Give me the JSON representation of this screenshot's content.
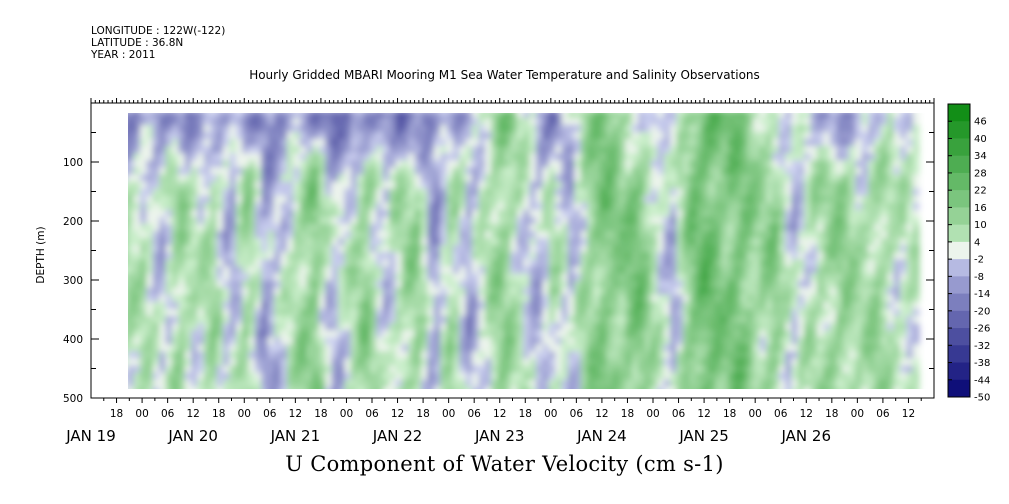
{
  "header": {
    "longitude": "LONGITUDE : 122W(-122)",
    "latitude": "LATITUDE : 36.8N",
    "year": "YEAR : 2011"
  },
  "chart_data": {
    "type": "heatmap",
    "title": "Hourly Gridded MBARI Mooring M1 Sea Water Temperature and Salinity Observations",
    "xlabel": "U Component of Water Velocity (cm s-1)",
    "ylabel": "DEPTH (m)",
    "ylim": [
      500,
      0
    ],
    "xlim_hours": [
      -12,
      186
    ],
    "data_range_hours": [
      -2,
      179
    ],
    "data_depth_range": [
      25,
      490
    ],
    "y_ticks": [
      100,
      200,
      300,
      400,
      500
    ],
    "x_hour_ticks": [
      {
        "h": -6,
        "label": "18"
      },
      {
        "h": 0,
        "label": "00"
      },
      {
        "h": 6,
        "label": "06"
      },
      {
        "h": 12,
        "label": "12"
      },
      {
        "h": 18,
        "label": "18"
      },
      {
        "h": 24,
        "label": "00"
      },
      {
        "h": 30,
        "label": "06"
      },
      {
        "h": 36,
        "label": "12"
      },
      {
        "h": 42,
        "label": "18"
      },
      {
        "h": 48,
        "label": "00"
      },
      {
        "h": 54,
        "label": "06"
      },
      {
        "h": 60,
        "label": "12"
      },
      {
        "h": 66,
        "label": "18"
      },
      {
        "h": 72,
        "label": "00"
      },
      {
        "h": 78,
        "label": "06"
      },
      {
        "h": 84,
        "label": "12"
      },
      {
        "h": 90,
        "label": "18"
      },
      {
        "h": 96,
        "label": "00"
      },
      {
        "h": 102,
        "label": "06"
      },
      {
        "h": 108,
        "label": "12"
      },
      {
        "h": 114,
        "label": "18"
      },
      {
        "h": 120,
        "label": "00"
      },
      {
        "h": 126,
        "label": "06"
      },
      {
        "h": 132,
        "label": "12"
      },
      {
        "h": 138,
        "label": "18"
      },
      {
        "h": 144,
        "label": "00"
      },
      {
        "h": 150,
        "label": "06"
      },
      {
        "h": 156,
        "label": "12"
      },
      {
        "h": 162,
        "label": "18"
      },
      {
        "h": 168,
        "label": "00"
      },
      {
        "h": 174,
        "label": "06"
      },
      {
        "h": 180,
        "label": "12"
      }
    ],
    "x_day_labels": [
      {
        "h": -12,
        "label": "JAN 19"
      },
      {
        "h": 12,
        "label": "JAN 20"
      },
      {
        "h": 36,
        "label": "JAN 21"
      },
      {
        "h": 60,
        "label": "JAN 22"
      },
      {
        "h": 84,
        "label": "JAN 23"
      },
      {
        "h": 108,
        "label": "JAN 24"
      },
      {
        "h": 132,
        "label": "JAN 25"
      },
      {
        "h": 156,
        "label": "JAN 26"
      }
    ],
    "colorbar": {
      "min": -50,
      "max": 52,
      "labels": [
        "46",
        "40",
        "34",
        "28",
        "22",
        "16",
        "10",
        "4",
        "-2",
        "-8",
        "-14",
        "-20",
        "-26",
        "-32",
        "-38",
        "-44",
        "-50"
      ]
    },
    "column_profile": [
      {
        "h": 0,
        "v": 6
      },
      {
        "h": 4,
        "v": -4
      },
      {
        "h": 8,
        "v": 12
      },
      {
        "h": 12,
        "v": 2
      },
      {
        "h": 16,
        "v": 10
      },
      {
        "h": 20,
        "v": -8
      },
      {
        "h": 24,
        "v": 14
      },
      {
        "h": 28,
        "v": -10
      },
      {
        "h": 32,
        "v": -2
      },
      {
        "h": 36,
        "v": 10
      },
      {
        "h": 40,
        "v": 16
      },
      {
        "h": 44,
        "v": -6
      },
      {
        "h": 48,
        "v": 4
      },
      {
        "h": 52,
        "v": 14
      },
      {
        "h": 56,
        "v": -4
      },
      {
        "h": 60,
        "v": 8
      },
      {
        "h": 64,
        "v": 12
      },
      {
        "h": 68,
        "v": -12
      },
      {
        "h": 72,
        "v": 12
      },
      {
        "h": 76,
        "v": -8
      },
      {
        "h": 80,
        "v": 4
      },
      {
        "h": 84,
        "v": 14
      },
      {
        "h": 88,
        "v": 4
      },
      {
        "h": 92,
        "v": -8
      },
      {
        "h": 96,
        "v": 8
      },
      {
        "h": 100,
        "v": -6
      },
      {
        "h": 104,
        "v": 12
      },
      {
        "h": 108,
        "v": 18
      },
      {
        "h": 112,
        "v": 14
      },
      {
        "h": 116,
        "v": 20
      },
      {
        "h": 120,
        "v": 4
      },
      {
        "h": 124,
        "v": -6
      },
      {
        "h": 128,
        "v": 18
      },
      {
        "h": 132,
        "v": 22
      },
      {
        "h": 136,
        "v": 16
      },
      {
        "h": 140,
        "v": 20
      },
      {
        "h": 144,
        "v": 10
      },
      {
        "h": 148,
        "v": 14
      },
      {
        "h": 152,
        "v": -4
      },
      {
        "h": 156,
        "v": 6
      },
      {
        "h": 160,
        "v": 10
      },
      {
        "h": 164,
        "v": 14
      },
      {
        "h": 168,
        "v": 6
      },
      {
        "h": 172,
        "v": 12
      },
      {
        "h": 176,
        "v": 4
      }
    ],
    "surface_profile": [
      {
        "h": 0,
        "v": -14
      },
      {
        "h": 24,
        "v": -10
      },
      {
        "h": 48,
        "v": -18
      },
      {
        "h": 72,
        "v": -14
      },
      {
        "h": 84,
        "v": 18
      },
      {
        "h": 96,
        "v": -16
      },
      {
        "h": 108,
        "v": 24
      },
      {
        "h": 120,
        "v": -12
      },
      {
        "h": 132,
        "v": 28
      },
      {
        "h": 144,
        "v": 10
      },
      {
        "h": 156,
        "v": -8
      },
      {
        "h": 168,
        "v": -10
      },
      {
        "h": 179,
        "v": 4
      }
    ]
  }
}
